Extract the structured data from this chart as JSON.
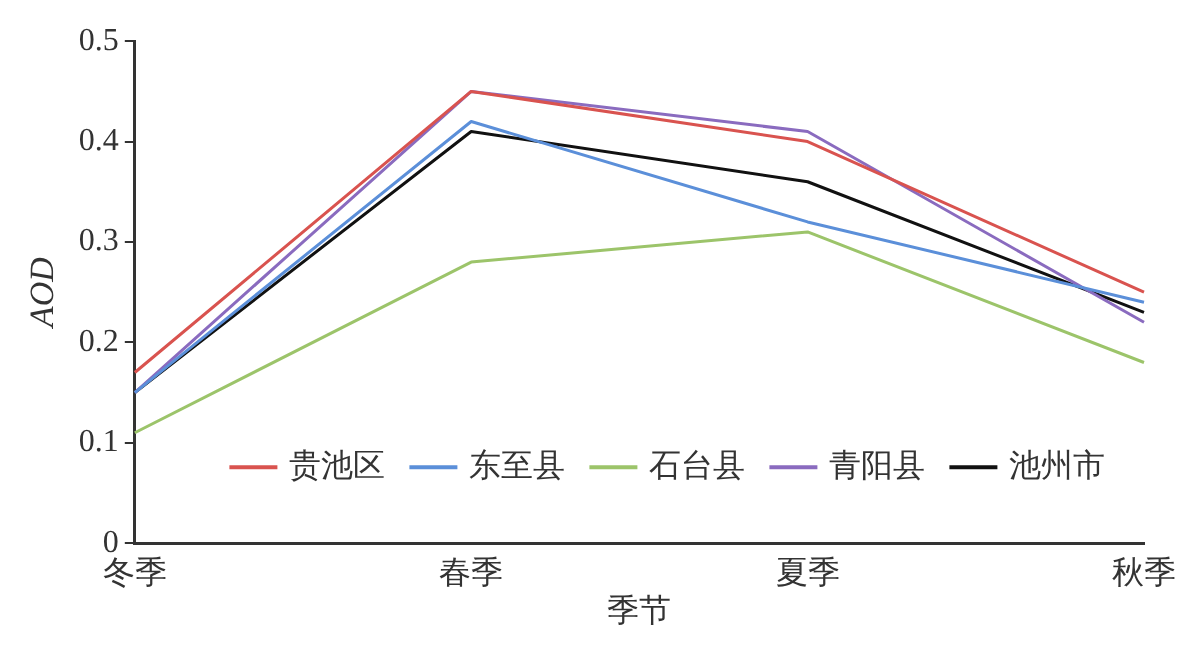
{
  "chart_data": {
    "type": "line",
    "xlabel": "季节",
    "ylabel": "AOD",
    "categories": [
      "冬季",
      "春季",
      "夏季",
      "秋季"
    ],
    "series": [
      {
        "name": "贵池区",
        "color": "#d9534f",
        "values": [
          0.17,
          0.45,
          0.4,
          0.25
        ]
      },
      {
        "name": "东至县",
        "color": "#5b8fd9",
        "values": [
          0.15,
          0.42,
          0.32,
          0.24
        ]
      },
      {
        "name": "石台县",
        "color": "#9cc46a",
        "values": [
          0.11,
          0.28,
          0.31,
          0.18
        ]
      },
      {
        "name": "青阳县",
        "color": "#8a6bbf",
        "values": [
          0.15,
          0.45,
          0.41,
          0.22
        ]
      },
      {
        "name": "池州市",
        "color": "#111111",
        "values": [
          0.15,
          0.41,
          0.36,
          0.23
        ]
      }
    ],
    "ylim": [
      0,
      0.5
    ],
    "yticks": [
      0,
      0.1,
      0.2,
      0.3,
      0.4,
      0.5
    ],
    "grid": false,
    "legend": "bottom",
    "marker": "none",
    "line_style": "solid"
  }
}
